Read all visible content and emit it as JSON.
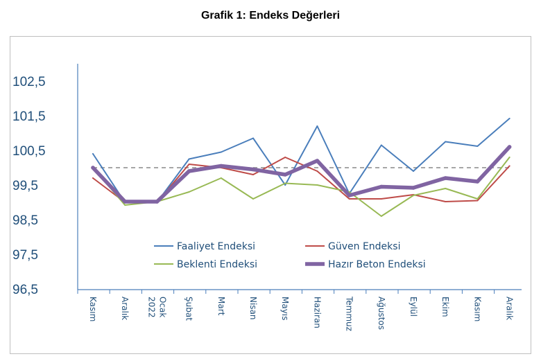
{
  "chart_data": {
    "type": "line",
    "title": "Grafik 1: Endeks Değerleri",
    "xlabel": "",
    "ylabel": "",
    "ylim": [
      96.5,
      103.0
    ],
    "yticks": [
      "102,5",
      "101,5",
      "100,5",
      "99,5",
      "98,5",
      "97,5",
      "96,5"
    ],
    "ytick_values": [
      102.5,
      101.5,
      100.5,
      99.5,
      98.5,
      97.5,
      96.5
    ],
    "categories": [
      "Kasım",
      "Aralık",
      "Ocak 2022",
      "Şubat",
      "Mart",
      "Nisan",
      "Mayıs",
      "Haziran",
      "Temmuz",
      "Ağustos",
      "Eylül",
      "Ekim",
      "Kasım",
      "Aralık"
    ],
    "tick_labels": [
      {
        "lines": [
          "Kasım"
        ]
      },
      {
        "lines": [
          "Aralık"
        ]
      },
      {
        "lines": [
          "Ocak",
          "2022"
        ]
      },
      {
        "lines": [
          "Şubat"
        ]
      },
      {
        "lines": [
          "Mart"
        ]
      },
      {
        "lines": [
          "Nisan"
        ]
      },
      {
        "lines": [
          "Mayıs"
        ]
      },
      {
        "lines": [
          "Haziran"
        ]
      },
      {
        "lines": [
          "Temmuz"
        ]
      },
      {
        "lines": [
          "Ağustos"
        ]
      },
      {
        "lines": [
          "Eylül"
        ]
      },
      {
        "lines": [
          "Ekim"
        ]
      },
      {
        "lines": [
          "Kasım"
        ]
      },
      {
        "lines": [
          "Aralık"
        ]
      }
    ],
    "reference_line": 100.0,
    "grid": false,
    "legend_position": "bottom-center",
    "series": [
      {
        "name": "Faaliyet Endeksi",
        "color": "#4a7ebb",
        "values": [
          100.4,
          99.0,
          99.0,
          100.25,
          100.45,
          100.85,
          99.5,
          101.2,
          99.25,
          100.65,
          99.9,
          100.75,
          100.62,
          101.42
        ]
      },
      {
        "name": "Güven Endeksi",
        "color": "#be4b48",
        "values": [
          99.7,
          99.0,
          99.0,
          100.1,
          100.0,
          99.8,
          100.3,
          99.9,
          99.1,
          99.1,
          99.22,
          99.02,
          99.05,
          100.05
        ]
      },
      {
        "name": "Beklenti Endeksi",
        "color": "#98b954",
        "values": [
          100.0,
          98.92,
          99.02,
          99.3,
          99.7,
          99.1,
          99.55,
          99.5,
          99.3,
          98.6,
          99.2,
          99.4,
          99.1,
          100.3
        ]
      },
      {
        "name": "Hazır Beton Endeksi",
        "color": "#8064a2",
        "values": [
          100.0,
          99.02,
          99.02,
          99.9,
          100.05,
          99.95,
          99.8,
          100.2,
          99.2,
          99.45,
          99.42,
          99.7,
          99.6,
          100.6
        ]
      }
    ]
  }
}
